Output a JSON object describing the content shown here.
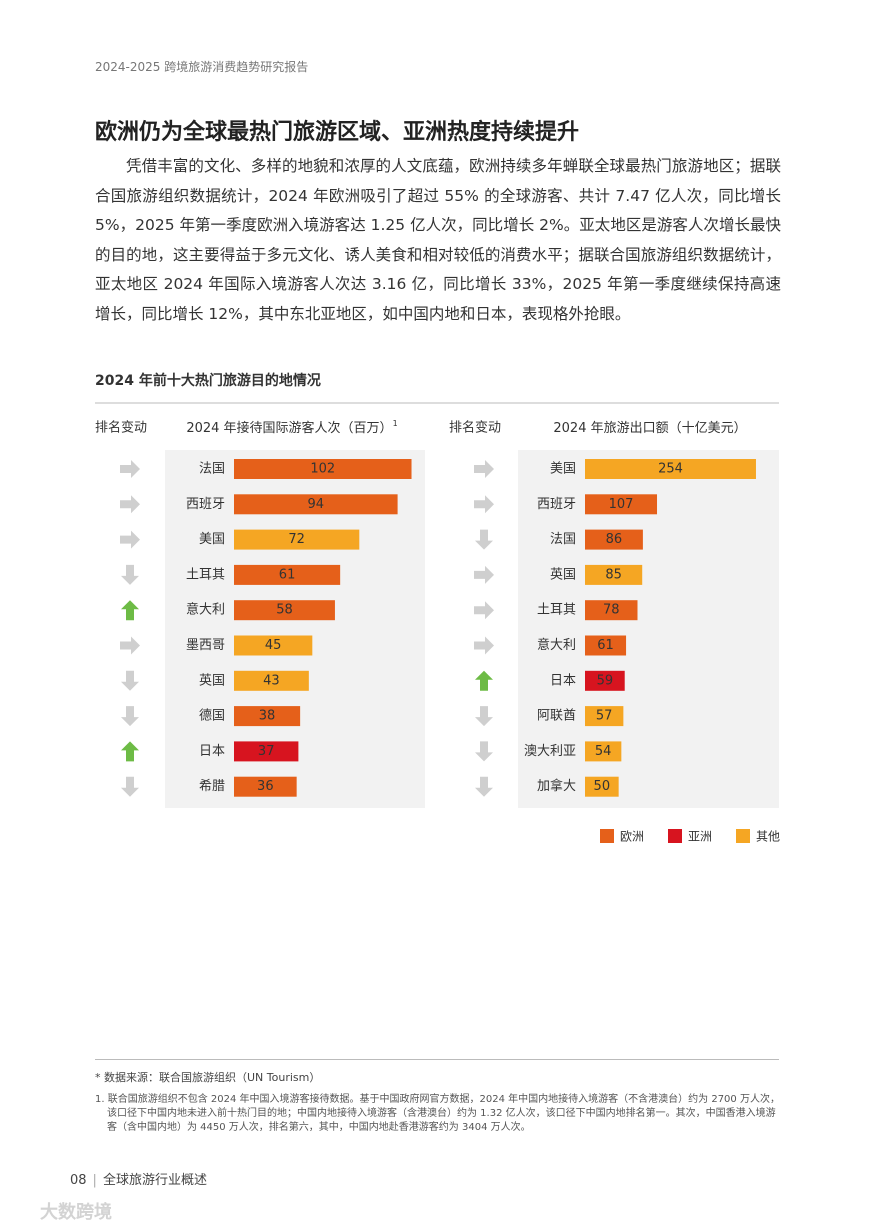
{
  "header": "2024-2025 跨境旅游消费趋势研究报告",
  "section_title": "欧洲仍为全球最热门旅游区域、亚洲热度持续提升",
  "body": "凭借丰富的文化、多样的地貌和浓厚的人文底蕴，欧洲持续多年蝉联全球最热门旅游地区；据联合国旅游组织数据统计，2024 年欧洲吸引了超过 55% 的全球游客、共计 7.47 亿人次，同比增长 5%，2025 年第一季度欧洲入境游客达 1.25 亿人次，同比增长 2%。亚太地区是游客人次增长最快的目的地，这主要得益于多元文化、诱人美食和相对较低的消费水平；据联合国旅游组织数据统计，亚太地区 2024 年国际入境游客人次达 3.16 亿，同比增长 33%，2025 年第一季度继续保持高速增长，同比增长 12%，其中东北亚地区，如中国内地和日本，表现格外抢眼。",
  "figure_title": "2024 年前十大热门旅游目的地情况",
  "chart_data": [
    {
      "type": "bar",
      "orientation": "horizontal",
      "rank_header": "排名变动",
      "title": "2024 年接待国际游客人次（百万）",
      "title_note": "1",
      "categories": [
        "法国",
        "西班牙",
        "美国",
        "土耳其",
        "意大利",
        "墨西哥",
        "英国",
        "德国",
        "日本",
        "希腊"
      ],
      "values": [
        102,
        94,
        72,
        61,
        58,
        45,
        43,
        38,
        37,
        36
      ],
      "colors": [
        "#e5601a",
        "#e5601a",
        "#f5a623",
        "#e5601a",
        "#e5601a",
        "#f5a623",
        "#f5a623",
        "#e5601a",
        "#d7141f",
        "#e5601a"
      ],
      "rank_change": [
        "same",
        "same",
        "same",
        "down",
        "up",
        "same",
        "down",
        "down",
        "up",
        "down"
      ],
      "xlim": [
        0,
        104
      ]
    },
    {
      "type": "bar",
      "orientation": "horizontal",
      "rank_header": "排名变动",
      "title": "2024 年旅游出口额（十亿美元）",
      "categories": [
        "美国",
        "西班牙",
        "法国",
        "英国",
        "土耳其",
        "意大利",
        "日本",
        "阿联酋",
        "澳大利亚",
        "加拿大"
      ],
      "values": [
        254,
        107,
        86,
        85,
        78,
        61,
        59,
        57,
        54,
        50
      ],
      "colors": [
        "#f5a623",
        "#e5601a",
        "#e5601a",
        "#f5a623",
        "#e5601a",
        "#e5601a",
        "#d7141f",
        "#f5a623",
        "#f5a623",
        "#f5a623"
      ],
      "rank_change": [
        "same",
        "same",
        "down",
        "same",
        "same",
        "same",
        "up",
        "down",
        "down",
        "down"
      ],
      "xlim": [
        0,
        260
      ]
    }
  ],
  "legend": [
    {
      "name": "欧洲",
      "color": "#e5601a"
    },
    {
      "name": "亚洲",
      "color": "#d7141f"
    },
    {
      "name": "其他",
      "color": "#f5a623"
    }
  ],
  "source": "* 数据来源：联合国旅游组织（UN Tourism）",
  "footnote": "1. 联合国旅游组织不包含 2024 年中国入境游客接待数据。基于中国政府网官方数据，2024 年中国内地接待入境游客（不含港澳台）约为 2700 万人次，该口径下中国内地未进入前十热门目的地；中国内地接待入境游客（含港澳台）约为 1.32 亿人次，该口径下中国内地排名第一。其次，中国香港入境游客（含中国内地）为 4450 万人次，排名第六，其中，中国内地赴香港游客约为 3404 万人次。",
  "page_number": "08",
  "page_section": "全球旅游行业概述",
  "watermark": "大数跨境"
}
